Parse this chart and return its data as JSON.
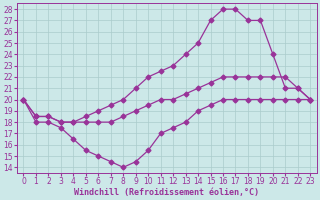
{
  "xlabel": "Windchill (Refroidissement éolien,°C)",
  "bg_color": "#cce8e8",
  "grid_color": "#aacccc",
  "line_color": "#993399",
  "xlim": [
    -0.5,
    23.5
  ],
  "ylim": [
    13.5,
    28.5
  ],
  "xticks": [
    0,
    1,
    2,
    3,
    4,
    5,
    6,
    7,
    8,
    9,
    10,
    11,
    12,
    13,
    14,
    15,
    16,
    17,
    18,
    19,
    20,
    21,
    22,
    23
  ],
  "yticks": [
    14,
    15,
    16,
    17,
    18,
    19,
    20,
    21,
    22,
    23,
    24,
    25,
    26,
    27,
    28
  ],
  "series": [
    [
      20,
      18,
      18,
      17.5,
      16.5,
      15.5,
      15,
      14.5,
      14,
      14.5,
      15.5,
      17,
      17.5,
      18,
      19,
      19.5,
      20,
      20,
      20,
      20,
      20,
      20,
      20,
      20
    ],
    [
      20,
      18.5,
      18.5,
      18,
      18,
      18,
      18,
      18,
      18.5,
      19,
      19.5,
      20,
      20,
      20.5,
      21,
      21.5,
      22,
      22,
      22,
      22,
      22,
      22,
      21,
      20
    ],
    [
      20,
      18.5,
      18.5,
      18,
      18,
      18.5,
      19,
      19.5,
      20,
      21,
      22,
      22.5,
      23,
      24,
      25,
      27,
      28,
      28,
      27,
      27,
      24,
      21,
      21,
      20
    ]
  ],
  "marker": "D",
  "markersize": 2.5,
  "linewidth": 0.9,
  "tick_fontsize": 5.5,
  "xlabel_fontsize": 6.0
}
